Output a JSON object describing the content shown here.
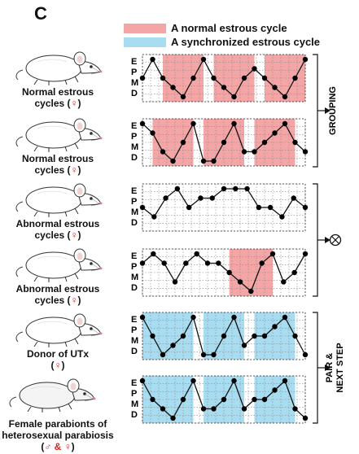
{
  "panel_letter": "C",
  "legend": [
    {
      "label": "A normal estrous cycle",
      "color": "#f4a6a6"
    },
    {
      "label": "A synchronized estrous cycle",
      "color": "#a8dcf0"
    }
  ],
  "stage_labels": [
    "E",
    "P",
    "M",
    "D"
  ],
  "rows": [
    {
      "label_lines": [
        "Normal estrous",
        "cycles ("
      ],
      "sym": "♀",
      "close": ")",
      "series": [
        2,
        0,
        2,
        3,
        4,
        2,
        0,
        2,
        3,
        4,
        2,
        1,
        2,
        3,
        4,
        2,
        0
      ],
      "shaded": [
        [
          2,
          6
        ],
        [
          7,
          11
        ],
        [
          12,
          16
        ]
      ],
      "shade_color": "#f4a6a6"
    },
    {
      "label_lines": [
        "Normal estrous",
        "cycles ("
      ],
      "sym": "♀",
      "close": ")",
      "series": [
        0,
        1,
        3,
        4,
        2,
        0,
        4,
        4,
        2,
        0,
        3,
        3,
        2,
        1,
        0,
        2,
        3
      ],
      "shaded": [
        [
          1,
          5
        ],
        [
          6,
          10
        ],
        [
          11,
          15
        ]
      ],
      "shade_color": "#f4a6a6"
    },
    {
      "label_lines": [
        "Abnormal estrous",
        "cycles ("
      ],
      "sym": "♀",
      "close": ")",
      "series": [
        2,
        3,
        1,
        0,
        2,
        1,
        1,
        0,
        0,
        0,
        2,
        2,
        3,
        1,
        2
      ],
      "shaded": [],
      "shade_color": "#f4a6a6"
    },
    {
      "label_lines": [
        "Abnormal estrous",
        "cycles ("
      ],
      "sym": "♀",
      "close": ")",
      "series": [
        1,
        0,
        1,
        3,
        1,
        0,
        1,
        1,
        2,
        3,
        4,
        1,
        0,
        3,
        2,
        0
      ],
      "shaded": [
        [
          8,
          12
        ]
      ],
      "shade_color": "#f4a6a6"
    },
    {
      "label_lines": [
        "Donor of UTx",
        "("
      ],
      "sym": "♀",
      "close": ")",
      "series": [
        0,
        2,
        4,
        3,
        2,
        0,
        4,
        4,
        2,
        0,
        3,
        2,
        2,
        1,
        0,
        2,
        4
      ],
      "shaded": [
        [
          0,
          5
        ],
        [
          6,
          10
        ],
        [
          11,
          15
        ]
      ],
      "shade_color": "#a8dcf0"
    },
    {
      "label_lines": [
        "Female parabionts of",
        "heterosexual parabiosis",
        "("
      ],
      "sym": "♂ & ♀",
      "close": ")",
      "series": [
        0,
        2,
        3,
        4,
        2,
        0,
        3,
        3,
        2,
        0,
        3,
        2,
        2,
        1,
        0,
        3,
        4
      ],
      "shaded": [
        [
          0,
          5
        ],
        [
          6,
          10
        ],
        [
          11,
          15
        ]
      ],
      "shade_color": "#a8dcf0"
    }
  ],
  "brackets": [
    {
      "label": "GROUPING"
    },
    {
      "label": "⊗"
    },
    {
      "label": "PAIR & NEXT STEP"
    }
  ]
}
